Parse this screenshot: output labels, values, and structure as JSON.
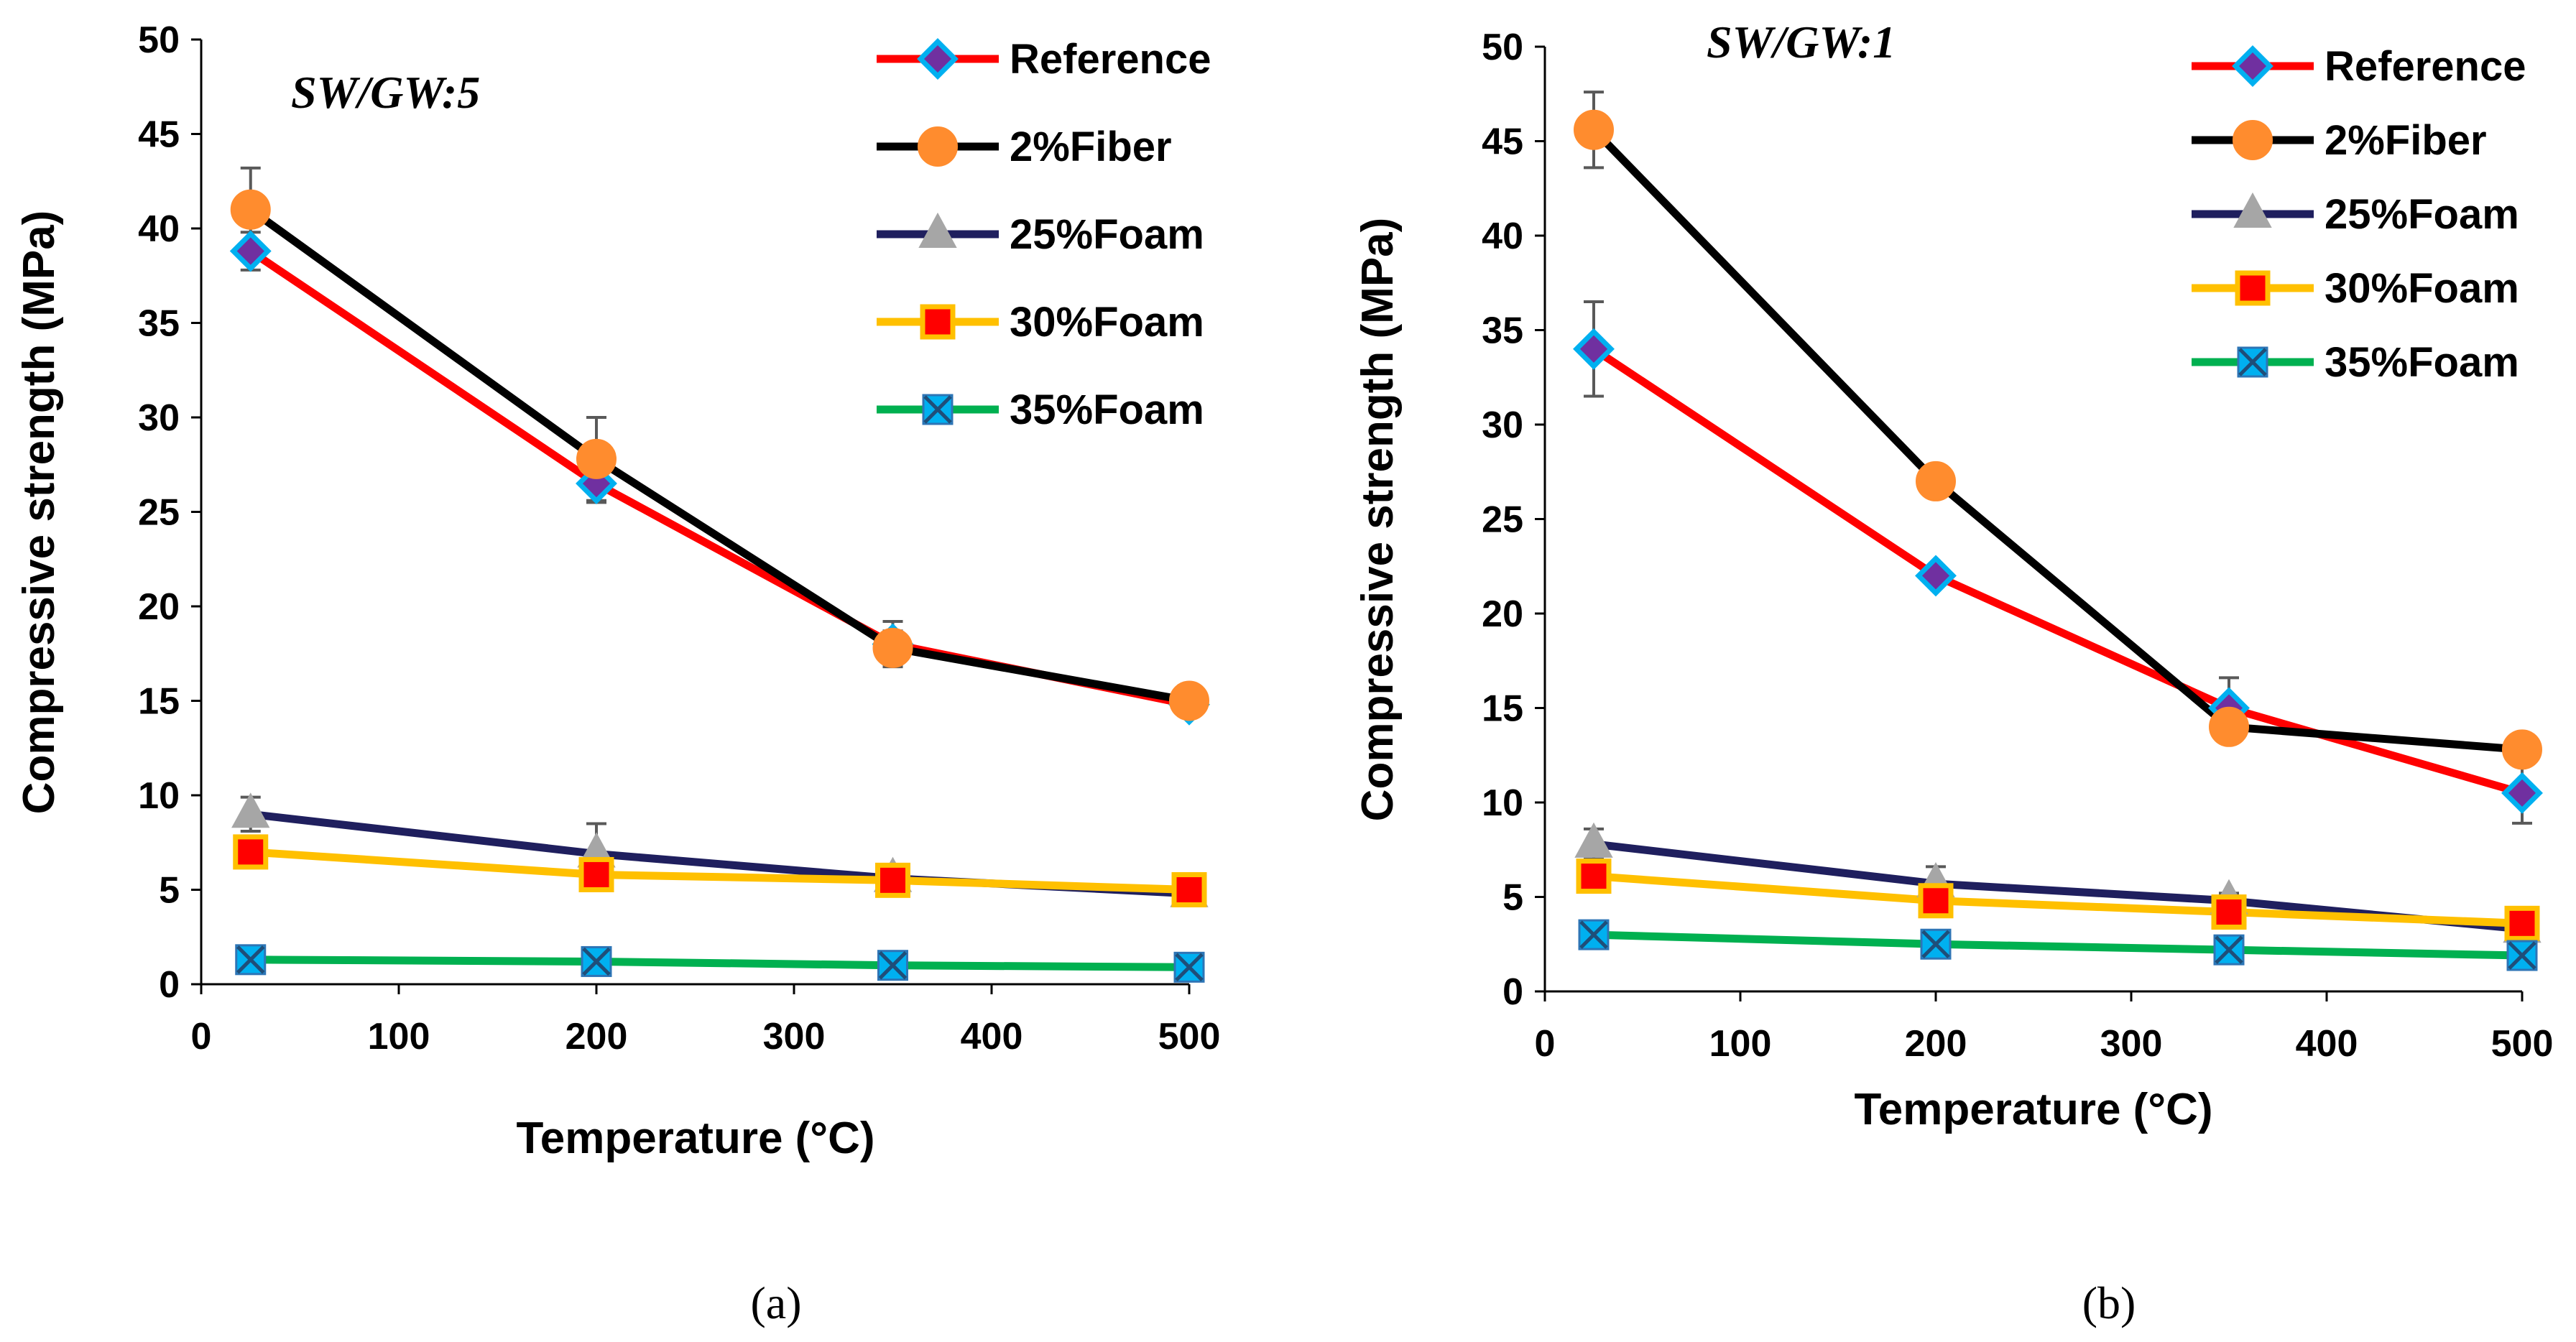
{
  "chart_data": [
    {
      "type": "line",
      "panel_label": "(a)",
      "title": "SW/GW:5",
      "xlabel": "Temperature (°C)",
      "ylabel": "Compressive strength (MPa)",
      "xlim": [
        0,
        500
      ],
      "ylim": [
        0,
        50
      ],
      "xticks": [
        0,
        100,
        200,
        300,
        400,
        500
      ],
      "yticks": [
        0,
        5,
        10,
        15,
        20,
        25,
        30,
        35,
        40,
        45,
        50
      ],
      "grid": false,
      "legend_position": "top-right",
      "x": [
        25,
        200,
        350,
        500
      ],
      "series": [
        {
          "name": "Reference",
          "values": [
            38.8,
            26.5,
            18.0,
            14.8
          ],
          "errors": [
            1.0,
            1.0,
            1.2,
            0.5
          ],
          "line_color": "#ff0000",
          "marker": "diamond",
          "marker_fill": "#7030a0",
          "marker_edge": "#00b0f0"
        },
        {
          "name": "2%Fiber",
          "values": [
            41.0,
            27.8,
            17.8,
            15.0
          ],
          "errors": [
            2.2,
            2.2,
            0.9,
            0.4
          ],
          "line_color": "#000000",
          "marker": "circle",
          "marker_fill": "#ff8c2e",
          "marker_edge": "#ff8c2e"
        },
        {
          "name": "25%Foam",
          "values": [
            9.0,
            6.9,
            5.6,
            4.8
          ],
          "errors": [
            0.9,
            1.6,
            0.7,
            0.3
          ],
          "line_color": "#1f1f5e",
          "marker": "triangle",
          "marker_fill": "#a6a6a6",
          "marker_edge": "#a6a6a6"
        },
        {
          "name": "30%Foam",
          "values": [
            7.0,
            5.8,
            5.5,
            5.0
          ],
          "errors": [
            0.5,
            0.5,
            0.5,
            0.3
          ],
          "line_color": "#ffc000",
          "marker": "square",
          "marker_fill": "#ff0000",
          "marker_edge": "#ffc000"
        },
        {
          "name": "35%Foam",
          "values": [
            1.3,
            1.2,
            1.0,
            0.9
          ],
          "errors": [
            0.2,
            0.2,
            0.2,
            0.2
          ],
          "line_color": "#00b050",
          "marker": "x-square",
          "marker_fill": "#00b0f0",
          "marker_edge": "#00b0f0"
        }
      ]
    },
    {
      "type": "line",
      "panel_label": "(b)",
      "title": "SW/GW:1",
      "xlabel": "Temperature (°C)",
      "ylabel": "Compressive strength (MPa)",
      "xlim": [
        0,
        500
      ],
      "ylim": [
        0,
        50
      ],
      "xticks": [
        0,
        100,
        200,
        300,
        400,
        500
      ],
      "yticks": [
        0,
        5,
        10,
        15,
        20,
        25,
        30,
        35,
        40,
        45,
        50
      ],
      "grid": false,
      "legend_position": "top-right",
      "x": [
        25,
        200,
        350,
        500
      ],
      "series": [
        {
          "name": "Reference",
          "values": [
            34.0,
            22.0,
            15.0,
            10.5
          ],
          "errors": [
            2.5,
            0.4,
            1.6,
            1.6
          ],
          "line_color": "#ff0000",
          "marker": "diamond",
          "marker_fill": "#7030a0",
          "marker_edge": "#00b0f0"
        },
        {
          "name": "2%Fiber",
          "values": [
            45.6,
            27.0,
            14.0,
            12.8
          ],
          "errors": [
            2.0,
            0.4,
            0.6,
            0.4
          ],
          "line_color": "#000000",
          "marker": "circle",
          "marker_fill": "#ff8c2e",
          "marker_edge": "#ff8c2e"
        },
        {
          "name": "25%Foam",
          "values": [
            7.8,
            5.7,
            4.8,
            3.3
          ],
          "errors": [
            0.8,
            0.9,
            0.4,
            0.3
          ],
          "line_color": "#1f1f5e",
          "marker": "triangle",
          "marker_fill": "#a6a6a6",
          "marker_edge": "#a6a6a6"
        },
        {
          "name": "30%Foam",
          "values": [
            6.1,
            4.8,
            4.2,
            3.6
          ],
          "errors": [
            0.5,
            0.5,
            0.4,
            0.3
          ],
          "line_color": "#ffc000",
          "marker": "square",
          "marker_fill": "#ff0000",
          "marker_edge": "#ffc000"
        },
        {
          "name": "35%Foam",
          "values": [
            3.0,
            2.5,
            2.2,
            1.9
          ],
          "errors": [
            0.2,
            0.2,
            0.2,
            0.2
          ],
          "line_color": "#00b050",
          "marker": "x-square",
          "marker_fill": "#00b0f0",
          "marker_edge": "#00b0f0"
        }
      ]
    }
  ]
}
